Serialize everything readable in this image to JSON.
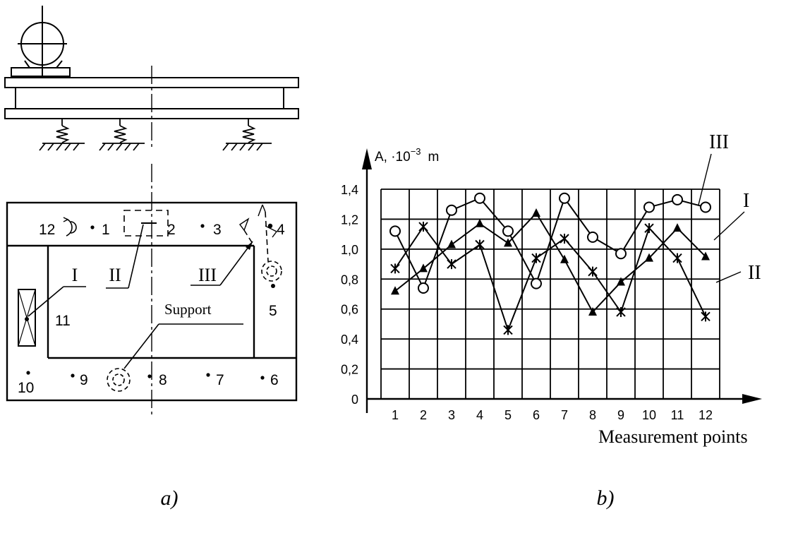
{
  "panel_a": {
    "caption": "a)",
    "points": [
      "12",
      "1",
      "2",
      "3",
      "4",
      "5",
      "6",
      "7",
      "8",
      "9",
      "10",
      "11"
    ],
    "variant_labels": [
      "I",
      "II",
      "III"
    ],
    "support_label": "Support"
  },
  "panel_b": {
    "caption": "b)",
    "axis_label": "A, ·10",
    "axis_exponent": "−3",
    "axis_unit": "m",
    "x_label": "Measurement points"
  },
  "chart_data": {
    "type": "line",
    "xlabel": "Measurement points",
    "ylabel": "A, ·10⁻³ m",
    "categories": [
      "1",
      "2",
      "3",
      "4",
      "5",
      "6",
      "7",
      "8",
      "9",
      "10",
      "11",
      "12"
    ],
    "ytick_labels": [
      "0",
      "0,2",
      "0,4",
      "0,6",
      "0,8",
      "1,0",
      "1,2",
      "1,4"
    ],
    "ylim": [
      0,
      1.4
    ],
    "grid": true,
    "series": [
      {
        "name": "I",
        "marker": "triangle",
        "values": [
          0.72,
          0.87,
          1.03,
          1.17,
          1.04,
          1.24,
          0.93,
          0.58,
          0.78,
          0.94,
          1.14,
          0.95
        ]
      },
      {
        "name": "II",
        "marker": "cross",
        "values": [
          0.87,
          1.15,
          0.9,
          1.03,
          0.46,
          0.94,
          1.07,
          0.85,
          0.58,
          1.14,
          0.94,
          0.55
        ]
      },
      {
        "name": "III",
        "marker": "circle",
        "values": [
          1.12,
          0.74,
          1.26,
          1.34,
          1.12,
          0.77,
          1.34,
          1.08,
          0.97,
          1.28,
          1.33,
          1.28
        ]
      }
    ]
  }
}
